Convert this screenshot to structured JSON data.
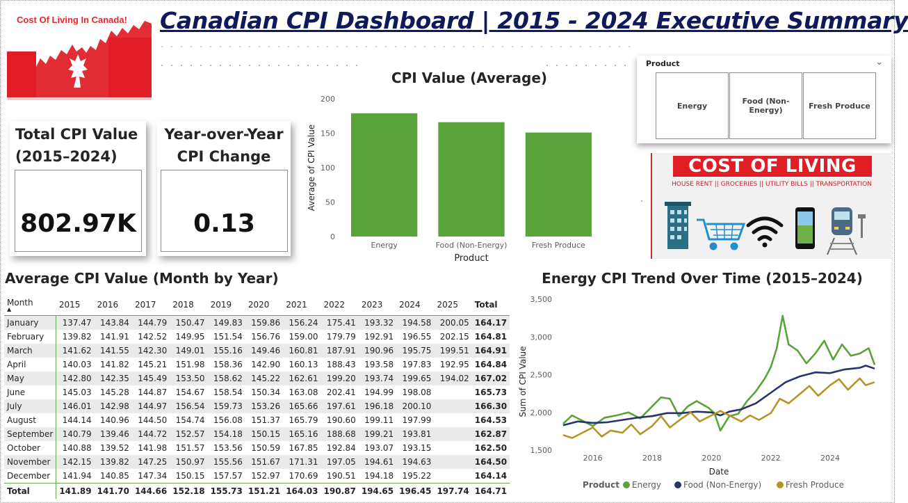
{
  "header": {
    "title": "Canadian CPI Dashboard | 2015 - 2024 Executive Summary",
    "logo_text": "Cost Of Living In Canada!"
  },
  "kpis": {
    "total": {
      "title_line1": "Total CPI Value",
      "title_line2": "(2015–2024)",
      "value": "802.97K"
    },
    "yoy": {
      "title_line1": "Year-over-Year",
      "title_line2": "CPI Change",
      "value": "0.13"
    }
  },
  "slicer": {
    "header": "Product",
    "chevron": "⌄",
    "options": [
      "Energy",
      "Food (Non-Energy)",
      "Fresh Produce"
    ]
  },
  "banner": {
    "title": "COST OF LIVING",
    "subtitle": "HOUSE RENT || GROCERIES || UTILITY BILLS || TRANSPORTATION",
    "icons": [
      "building-icon",
      "shopping-cart-icon",
      "wifi-icon",
      "smartphone-icon",
      "train-icon"
    ]
  },
  "colors": {
    "energy": "#5aa23a",
    "food": "#27336b",
    "produce": "#b39527",
    "bar": "#5aa23a",
    "title_navy": "#0e1a5a",
    "canada_red": "#e11d26"
  },
  "table": {
    "title": "Average CPI Value (Month by Year)",
    "month_header": "Month",
    "years": [
      "2015",
      "2016",
      "2017",
      "2018",
      "2019",
      "2020",
      "2021",
      "2022",
      "2023",
      "2024",
      "2025"
    ],
    "total_header": "Total",
    "rows": [
      {
        "month": "January",
        "values": [
          "137.47",
          "143.84",
          "144.79",
          "150.47",
          "149.83",
          "159.86",
          "156.24",
          "175.41",
          "193.32",
          "194.58",
          "200.05"
        ],
        "total": "164.17"
      },
      {
        "month": "February",
        "values": [
          "139.82",
          "141.91",
          "142.52",
          "149.95",
          "151.54",
          "156.76",
          "159.00",
          "179.79",
          "192.91",
          "196.55",
          "202.15"
        ],
        "total": "164.81"
      },
      {
        "month": "March",
        "values": [
          "141.62",
          "141.55",
          "142.30",
          "149.01",
          "155.16",
          "149.46",
          "160.81",
          "187.91",
          "190.96",
          "195.75",
          "199.51"
        ],
        "total": "164.91"
      },
      {
        "month": "April",
        "values": [
          "140.03",
          "141.82",
          "145.21",
          "151.98",
          "158.36",
          "142.90",
          "160.13",
          "188.43",
          "193.58",
          "197.83",
          "192.95"
        ],
        "total": "164.84"
      },
      {
        "month": "May",
        "values": [
          "142.80",
          "142.35",
          "145.49",
          "153.50",
          "158.62",
          "145.22",
          "162.61",
          "199.20",
          "193.74",
          "199.65",
          "194.02"
        ],
        "total": "167.02"
      },
      {
        "month": "June",
        "values": [
          "145.03",
          "145.28",
          "144.87",
          "154.67",
          "158.54",
          "150.34",
          "163.08",
          "202.41",
          "194.99",
          "198.08",
          ""
        ],
        "total": "165.73"
      },
      {
        "month": "July",
        "values": [
          "146.01",
          "142.98",
          "144.97",
          "156.54",
          "159.73",
          "153.26",
          "165.66",
          "197.61",
          "196.18",
          "200.10",
          ""
        ],
        "total": "166.30"
      },
      {
        "month": "August",
        "values": [
          "144.14",
          "140.96",
          "144.50",
          "154.74",
          "156.08",
          "151.37",
          "165.79",
          "190.60",
          "199.11",
          "197.99",
          ""
        ],
        "total": "164.53"
      },
      {
        "month": "September",
        "values": [
          "140.79",
          "139.46",
          "144.72",
          "152.57",
          "154.18",
          "150.15",
          "165.16",
          "188.68",
          "199.21",
          "193.81",
          ""
        ],
        "total": "162.87"
      },
      {
        "month": "October",
        "values": [
          "140.88",
          "139.52",
          "141.98",
          "151.57",
          "153.56",
          "150.59",
          "167.85",
          "192.84",
          "193.07",
          "193.15",
          ""
        ],
        "total": "162.50"
      },
      {
        "month": "November",
        "values": [
          "142.15",
          "139.82",
          "147.25",
          "150.97",
          "155.56",
          "151.67",
          "171.31",
          "197.05",
          "194.61",
          "194.63",
          ""
        ],
        "total": "164.50"
      },
      {
        "month": "December",
        "values": [
          "141.94",
          "140.85",
          "147.34",
          "150.15",
          "157.57",
          "152.97",
          "170.69",
          "190.51",
          "194.18",
          "195.22",
          ""
        ],
        "total": "164.14"
      }
    ],
    "total_row": {
      "month": "Total",
      "values": [
        "141.89",
        "141.70",
        "144.66",
        "152.18",
        "155.73",
        "151.21",
        "164.03",
        "190.87",
        "194.65",
        "196.45",
        "197.74"
      ],
      "total": "164.71"
    }
  },
  "chart_data": [
    {
      "type": "bar",
      "title": "CPI Value (Average)",
      "xlabel": "Product",
      "ylabel": "Average of CPI Value",
      "categories": [
        "Energy",
        "Food (Non-Energy)",
        "Fresh Produce"
      ],
      "values": [
        179,
        166,
        151
      ],
      "ylim": [
        0,
        200
      ],
      "yticks": [
        "0",
        "50",
        "100",
        "150",
        "200"
      ]
    },
    {
      "type": "line",
      "title": "Energy CPI Trend Over Time (2015–2024)",
      "xlabel": "Date",
      "ylabel": "Sum of CPI Value",
      "legend_title": "Product",
      "legend_position": "bottom",
      "ylim": [
        1500,
        3500
      ],
      "yticks": [
        "1,500",
        "2,000",
        "2,500",
        "3,000",
        "3,500"
      ],
      "xticks": [
        "2016",
        "2018",
        "2020",
        "2022",
        "2024"
      ],
      "xlim": [
        2015.0,
        2025.5
      ],
      "series": [
        {
          "name": "Energy",
          "points": [
            [
              2015.0,
              1850
            ],
            [
              2015.3,
              1960
            ],
            [
              2015.6,
              1900
            ],
            [
              2016.0,
              1820
            ],
            [
              2016.4,
              1930
            ],
            [
              2016.8,
              1960
            ],
            [
              2017.2,
              2000
            ],
            [
              2017.6,
              1920
            ],
            [
              2018.0,
              2080
            ],
            [
              2018.3,
              2200
            ],
            [
              2018.6,
              2180
            ],
            [
              2018.9,
              1950
            ],
            [
              2019.2,
              2080
            ],
            [
              2019.5,
              2150
            ],
            [
              2019.9,
              2060
            ],
            [
              2020.1,
              1990
            ],
            [
              2020.3,
              1760
            ],
            [
              2020.6,
              1950
            ],
            [
              2020.9,
              1980
            ],
            [
              2021.2,
              2150
            ],
            [
              2021.5,
              2280
            ],
            [
              2021.8,
              2450
            ],
            [
              2022.0,
              2600
            ],
            [
              2022.2,
              2850
            ],
            [
              2022.4,
              3280
            ],
            [
              2022.6,
              2900
            ],
            [
              2022.9,
              2820
            ],
            [
              2023.2,
              2650
            ],
            [
              2023.5,
              2780
            ],
            [
              2023.8,
              2950
            ],
            [
              2024.1,
              2700
            ],
            [
              2024.4,
              2900
            ],
            [
              2024.7,
              2750
            ],
            [
              2025.0,
              2780
            ],
            [
              2025.3,
              2850
            ],
            [
              2025.5,
              2630
            ]
          ]
        },
        {
          "name": "Food (Non-Energy)",
          "points": [
            [
              2015.0,
              1830
            ],
            [
              2015.5,
              1880
            ],
            [
              2016.0,
              1860
            ],
            [
              2016.5,
              1870
            ],
            [
              2017.0,
              1900
            ],
            [
              2017.5,
              1930
            ],
            [
              2018.0,
              1950
            ],
            [
              2018.5,
              1990
            ],
            [
              2019.0,
              1990
            ],
            [
              2019.5,
              2010
            ],
            [
              2020.0,
              2000
            ],
            [
              2020.3,
              1960
            ],
            [
              2020.6,
              2010
            ],
            [
              2021.0,
              2040
            ],
            [
              2021.5,
              2120
            ],
            [
              2022.0,
              2260
            ],
            [
              2022.5,
              2400
            ],
            [
              2023.0,
              2480
            ],
            [
              2023.5,
              2530
            ],
            [
              2024.0,
              2520
            ],
            [
              2024.5,
              2570
            ],
            [
              2025.0,
              2590
            ],
            [
              2025.2,
              2620
            ],
            [
              2025.5,
              2580
            ]
          ]
        },
        {
          "name": "Fresh Produce",
          "points": [
            [
              2015.0,
              1700
            ],
            [
              2015.3,
              1660
            ],
            [
              2015.6,
              1720
            ],
            [
              2016.0,
              1800
            ],
            [
              2016.3,
              1680
            ],
            [
              2016.6,
              1760
            ],
            [
              2017.0,
              1730
            ],
            [
              2017.3,
              1840
            ],
            [
              2017.6,
              1710
            ],
            [
              2018.0,
              1820
            ],
            [
              2018.3,
              1950
            ],
            [
              2018.6,
              1800
            ],
            [
              2019.0,
              1920
            ],
            [
              2019.3,
              2000
            ],
            [
              2019.6,
              1880
            ],
            [
              2020.0,
              1960
            ],
            [
              2020.3,
              2020
            ],
            [
              2020.6,
              1960
            ],
            [
              2021.0,
              1880
            ],
            [
              2021.3,
              1960
            ],
            [
              2021.6,
              1900
            ],
            [
              2022.0,
              1990
            ],
            [
              2022.3,
              2180
            ],
            [
              2022.6,
              2120
            ],
            [
              2023.0,
              2250
            ],
            [
              2023.3,
              2350
            ],
            [
              2023.6,
              2220
            ],
            [
              2024.0,
              2360
            ],
            [
              2024.3,
              2440
            ],
            [
              2024.6,
              2300
            ],
            [
              2025.0,
              2450
            ],
            [
              2025.2,
              2360
            ],
            [
              2025.5,
              2400
            ]
          ]
        }
      ]
    }
  ]
}
